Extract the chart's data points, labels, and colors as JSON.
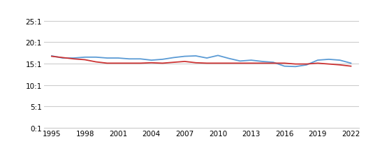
{
  "years": [
    1995,
    1996,
    1997,
    1998,
    1999,
    2000,
    2001,
    2002,
    2003,
    2004,
    2005,
    2006,
    2007,
    2008,
    2009,
    2010,
    2011,
    2012,
    2013,
    2014,
    2015,
    2016,
    2017,
    2018,
    2019,
    2020,
    2021,
    2022
  ],
  "troy": [
    16.8,
    16.3,
    16.3,
    16.5,
    16.5,
    16.3,
    16.3,
    16.1,
    16.1,
    15.8,
    16.0,
    16.4,
    16.7,
    16.8,
    16.3,
    16.9,
    16.2,
    15.6,
    15.8,
    15.5,
    15.3,
    14.4,
    14.3,
    14.7,
    15.8,
    16.0,
    15.8,
    15.1
  ],
  "state": [
    16.7,
    16.4,
    16.1,
    15.9,
    15.4,
    15.1,
    15.1,
    15.1,
    15.1,
    15.2,
    15.1,
    15.3,
    15.5,
    15.2,
    15.1,
    15.1,
    15.1,
    15.1,
    15.1,
    15.1,
    15.1,
    15.1,
    14.9,
    14.9,
    15.1,
    14.9,
    14.7,
    14.4
  ],
  "troy_color": "#5b9bd5",
  "state_color": "#cc3333",
  "yticks": [
    0,
    5,
    10,
    15,
    20,
    25
  ],
  "ytick_labels": [
    "0:1",
    "5:1",
    "10:1",
    "15:1",
    "20:1",
    "25:1"
  ],
  "xticks": [
    1995,
    1998,
    2001,
    2004,
    2007,
    2010,
    2013,
    2016,
    2019,
    2022
  ],
  "ylim": [
    0,
    27
  ],
  "xlim": [
    1994.3,
    2022.7
  ],
  "bg_color": "#ffffff",
  "grid_color": "#cccccc",
  "linewidth": 1.3,
  "tick_fontsize": 7.5,
  "legend_fontsize": 8.5
}
